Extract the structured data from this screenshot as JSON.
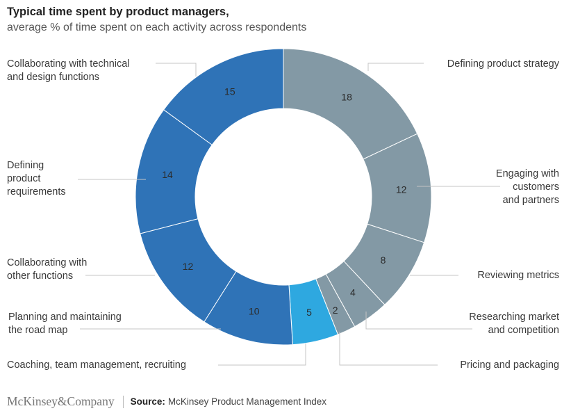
{
  "title": "Typical time spent by product managers,",
  "subtitle": "average % of time spent on each activity across respondents",
  "colors": {
    "grey": "#8399a5",
    "blue": "#2f73b7",
    "lightblue": "#2ea8e0",
    "separator": "#ffffff"
  },
  "chart_data": {
    "type": "pie",
    "style": "donut",
    "slices": [
      {
        "label": [
          "Defining product strategy"
        ],
        "value": 18,
        "color": "grey"
      },
      {
        "label": [
          "Engaging with",
          "customers",
          "and partners"
        ],
        "value": 12,
        "color": "grey"
      },
      {
        "label": [
          "Reviewing metrics"
        ],
        "value": 8,
        "color": "grey"
      },
      {
        "label": [
          "Researching market",
          "and competition"
        ],
        "value": 4,
        "color": "grey"
      },
      {
        "label": [
          "Pricing and packaging"
        ],
        "value": 2,
        "color": "grey"
      },
      {
        "label": [
          "Coaching, team management, recruiting"
        ],
        "value": 5,
        "color": "lightblue"
      },
      {
        "label": [
          "Planning and maintaining",
          "the road map"
        ],
        "value": 10,
        "color": "blue"
      },
      {
        "label": [
          "Collaborating with",
          "other functions"
        ],
        "value": 12,
        "color": "blue"
      },
      {
        "label": [
          "Defining",
          "product",
          "requirements"
        ],
        "value": 14,
        "color": "blue"
      },
      {
        "label": [
          "Collaborating with technical",
          "and design functions"
        ],
        "value": 15,
        "color": "blue"
      }
    ]
  },
  "footer": {
    "logo": "McKinsey&Company",
    "source_label": "Source:",
    "source_text": "McKinsey Product Management Index"
  }
}
